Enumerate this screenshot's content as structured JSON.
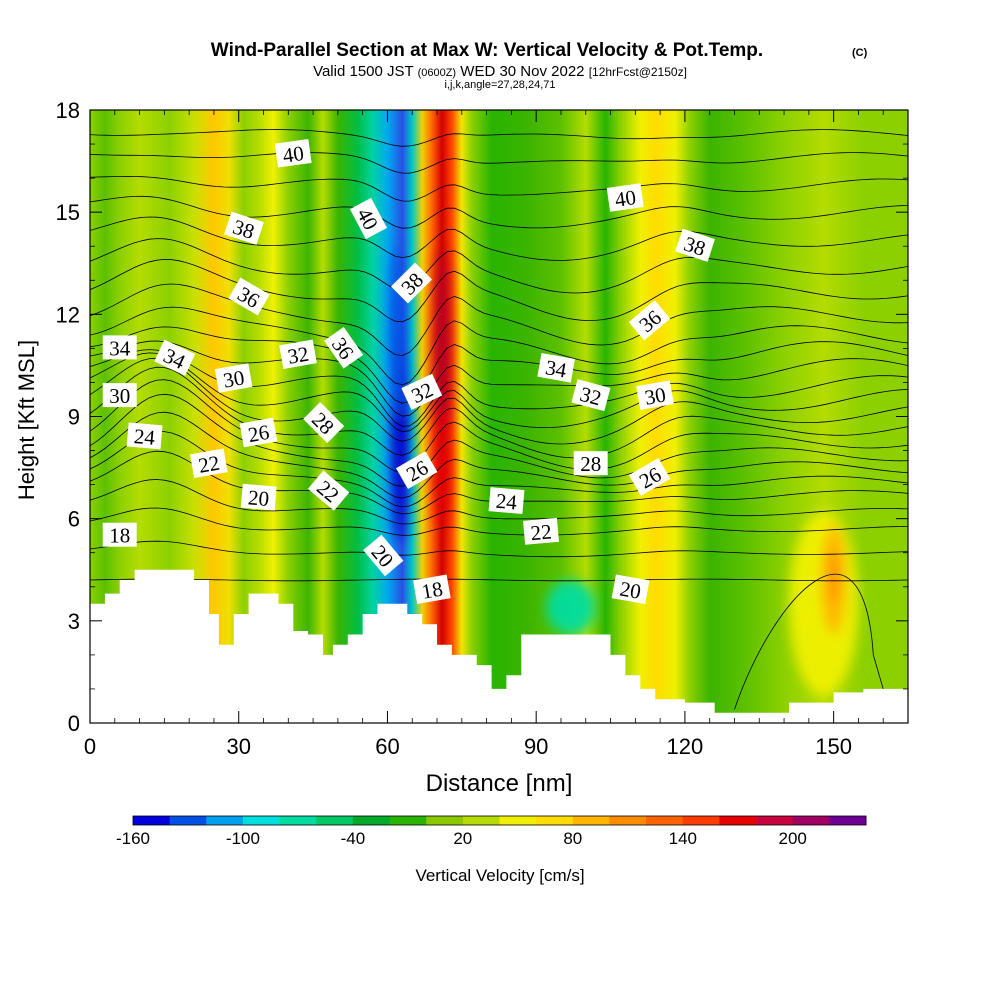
{
  "chart_data": {
    "type": "heatmap",
    "title": "Wind-Parallel Section at Max W: Vertical Velocity & Pot.Temp.",
    "title_mark": "(C)",
    "subtitle_parts": {
      "valid": "Valid 1500 JST",
      "utc": "(0600Z)",
      "date": "WED 30 Nov 2022",
      "fcst": "[12hrFcst@2150z]"
    },
    "subtitle2": "i,j,k,angle=27,28,24,71",
    "xlabel": "Distance [nm]",
    "ylabel": "Height [Kft MSL]",
    "xlim": [
      0,
      165
    ],
    "ylim": [
      0,
      18
    ],
    "x_ticks": [
      "0",
      "30",
      "60",
      "90",
      "120",
      "150"
    ],
    "x_tick_values": [
      0,
      30,
      60,
      90,
      120,
      150
    ],
    "y_ticks": [
      "0",
      "3",
      "6",
      "9",
      "12",
      "15",
      "18"
    ],
    "y_tick_values": [
      0,
      3,
      6,
      9,
      12,
      15,
      18
    ],
    "colorbar": {
      "label": "Vertical Velocity [cm/s]",
      "tick_labels": [
        "-160",
        "-100",
        "-40",
        "20",
        "80",
        "140",
        "200"
      ],
      "colors": [
        "#0000dd",
        "#0050e6",
        "#00a0ee",
        "#00dede",
        "#00dca0",
        "#00c864",
        "#00aa28",
        "#28b400",
        "#8cc800",
        "#b4dc00",
        "#f0f000",
        "#ffdc00",
        "#ffb400",
        "#ff8c00",
        "#ff6400",
        "#ff3c00",
        "#e60000",
        "#c8003c",
        "#a00064",
        "#6e0096"
      ]
    },
    "velocity_bands": [
      {
        "x": 0,
        "color": "#8cd000"
      },
      {
        "x": 3,
        "color": "#5cc000"
      },
      {
        "x": 6,
        "color": "#8cd000"
      },
      {
        "x": 10,
        "color": "#b4dc00"
      },
      {
        "x": 16,
        "color": "#8cd000"
      },
      {
        "x": 21,
        "color": "#c8e000"
      },
      {
        "x": 25,
        "color": "#ffc800"
      },
      {
        "x": 28,
        "color": "#f0e000"
      },
      {
        "x": 31,
        "color": "#8cd000"
      },
      {
        "x": 34,
        "color": "#b4dc00"
      },
      {
        "x": 37,
        "color": "#f0f000"
      },
      {
        "x": 40,
        "color": "#8cd000"
      },
      {
        "x": 44,
        "color": "#3cb400"
      },
      {
        "x": 47,
        "color": "#b4dc00"
      },
      {
        "x": 50,
        "color": "#3cb400"
      },
      {
        "x": 54,
        "color": "#00be46"
      },
      {
        "x": 57,
        "color": "#00d2a0"
      },
      {
        "x": 60,
        "color": "#00aaee"
      },
      {
        "x": 63,
        "color": "#2850e6"
      },
      {
        "x": 65,
        "color": "#00c8c8"
      },
      {
        "x": 67,
        "color": "#f0d200"
      },
      {
        "x": 69,
        "color": "#ff6400"
      },
      {
        "x": 71,
        "color": "#d20000"
      },
      {
        "x": 73,
        "color": "#ff4600"
      },
      {
        "x": 75,
        "color": "#f0e600"
      },
      {
        "x": 77,
        "color": "#8cd000"
      },
      {
        "x": 81,
        "color": "#28b400"
      },
      {
        "x": 88,
        "color": "#3cb400"
      },
      {
        "x": 95,
        "color": "#5cc000"
      },
      {
        "x": 100,
        "color": "#b4dc00"
      },
      {
        "x": 104,
        "color": "#28b400"
      },
      {
        "x": 107,
        "color": "#8cd000"
      },
      {
        "x": 111,
        "color": "#f0f000"
      },
      {
        "x": 114,
        "color": "#ffdc00"
      },
      {
        "x": 118,
        "color": "#f0f000"
      },
      {
        "x": 121,
        "color": "#8cd000"
      },
      {
        "x": 125,
        "color": "#3cb400"
      },
      {
        "x": 132,
        "color": "#5cc000"
      },
      {
        "x": 140,
        "color": "#8cd000"
      },
      {
        "x": 148,
        "color": "#b4dc00"
      },
      {
        "x": 156,
        "color": "#8cd000"
      },
      {
        "x": 165,
        "color": "#8cd000"
      }
    ],
    "velocity_cells": [
      {
        "x": 62.5,
        "y": 8.5,
        "rx": 1.6,
        "ry": 3.2,
        "color": "#0000c8"
      },
      {
        "x": 62,
        "y": 11.5,
        "rx": 1.4,
        "ry": 2.5,
        "color": "#0050e6"
      },
      {
        "x": 71,
        "y": 10.5,
        "rx": 1.6,
        "ry": 3.5,
        "color": "#b40028"
      },
      {
        "x": 71,
        "y": 7.5,
        "rx": 1.4,
        "ry": 1.8,
        "color": "#e60000"
      },
      {
        "x": 97,
        "y": 3.4,
        "rx": 5,
        "ry": 0.8,
        "color": "#00dca0"
      },
      {
        "x": 148,
        "y": 3.5,
        "rx": 7,
        "ry": 2.7,
        "color": "#f0f000"
      },
      {
        "x": 150,
        "y": 4.2,
        "rx": 2.5,
        "ry": 1.6,
        "color": "#ffb400"
      },
      {
        "x": 150,
        "y": 4.3,
        "rx": 1,
        "ry": 0.8,
        "color": "#ff8c00"
      }
    ],
    "terrain": [
      [
        0,
        3.5
      ],
      [
        3,
        3.5
      ],
      [
        3,
        3.8
      ],
      [
        6,
        3.8
      ],
      [
        6,
        4.2
      ],
      [
        9,
        4.2
      ],
      [
        9,
        4.5
      ],
      [
        21,
        4.5
      ],
      [
        21,
        4.2
      ],
      [
        24,
        4.2
      ],
      [
        24,
        3.2
      ],
      [
        26,
        3.2
      ],
      [
        26,
        2.3
      ],
      [
        29,
        2.3
      ],
      [
        29,
        3.2
      ],
      [
        32,
        3.2
      ],
      [
        32,
        3.8
      ],
      [
        38,
        3.8
      ],
      [
        38,
        3.5
      ],
      [
        41,
        3.5
      ],
      [
        41,
        2.7
      ],
      [
        44,
        2.7
      ],
      [
        44,
        2.6
      ],
      [
        47,
        2.6
      ],
      [
        47,
        2.0
      ],
      [
        49,
        2.0
      ],
      [
        49,
        2.3
      ],
      [
        52,
        2.3
      ],
      [
        52,
        2.6
      ],
      [
        55,
        2.6
      ],
      [
        55,
        3.2
      ],
      [
        58,
        3.2
      ],
      [
        58,
        3.5
      ],
      [
        64,
        3.5
      ],
      [
        64,
        3.2
      ],
      [
        67,
        3.2
      ],
      [
        67,
        2.9
      ],
      [
        70,
        2.9
      ],
      [
        70,
        2.3
      ],
      [
        73,
        2.3
      ],
      [
        73,
        2.0
      ],
      [
        78,
        2.0
      ],
      [
        78,
        1.7
      ],
      [
        81,
        1.7
      ],
      [
        81,
        1.0
      ],
      [
        84,
        1.0
      ],
      [
        84,
        1.4
      ],
      [
        87,
        1.4
      ],
      [
        87,
        2.6
      ],
      [
        105,
        2.6
      ],
      [
        105,
        2.0
      ],
      [
        108,
        2.0
      ],
      [
        108,
        1.4
      ],
      [
        111,
        1.4
      ],
      [
        111,
        1.0
      ],
      [
        114,
        1.0
      ],
      [
        114,
        0.7
      ],
      [
        120,
        0.7
      ],
      [
        120,
        0.6
      ],
      [
        126,
        0.6
      ],
      [
        126,
        0.3
      ],
      [
        141,
        0.3
      ],
      [
        141,
        0.6
      ],
      [
        150,
        0.6
      ],
      [
        150,
        0.9
      ],
      [
        156,
        0.9
      ],
      [
        156,
        1.0
      ],
      [
        165,
        1.0
      ]
    ],
    "theta_lines": [
      {
        "base": 4.2,
        "left": 0.0,
        "wave": 0.0,
        "amp": 0.05
      },
      {
        "base": 5.0,
        "left": 0.3,
        "wave": 0.1,
        "amp": 0.1
      },
      {
        "base": 5.7,
        "left": 0.6,
        "wave": 0.2,
        "amp": 0.15
      },
      {
        "base": 6.2,
        "left": 1.0,
        "wave": 0.3,
        "amp": 0.2
      },
      {
        "base": 6.7,
        "left": 1.4,
        "wave": 0.4,
        "amp": 0.25
      },
      {
        "base": 7.1,
        "left": 1.6,
        "wave": 0.5,
        "amp": 0.3
      },
      {
        "base": 7.5,
        "left": 1.7,
        "wave": 0.6,
        "amp": 0.35
      },
      {
        "base": 7.9,
        "left": 1.7,
        "wave": 0.7,
        "amp": 0.4
      },
      {
        "base": 8.3,
        "left": 1.6,
        "wave": 0.8,
        "amp": 0.45
      },
      {
        "base": 8.7,
        "left": 1.5,
        "wave": 0.85,
        "amp": 0.5
      },
      {
        "base": 9.1,
        "left": 1.4,
        "wave": 0.9,
        "amp": 0.55
      },
      {
        "base": 9.5,
        "left": 1.3,
        "wave": 0.95,
        "amp": 0.6
      },
      {
        "base": 9.9,
        "left": 1.2,
        "wave": 1.0,
        "amp": 0.6
      },
      {
        "base": 10.4,
        "left": 1.1,
        "wave": 1.0,
        "amp": 0.6
      },
      {
        "base": 10.9,
        "left": 1.0,
        "wave": 1.0,
        "amp": 0.6
      },
      {
        "base": 11.4,
        "left": 0.9,
        "wave": 1.0,
        "amp": 0.55
      },
      {
        "base": 12.0,
        "left": 0.8,
        "wave": 0.9,
        "amp": 0.5
      },
      {
        "base": 12.7,
        "left": 0.7,
        "wave": 0.8,
        "amp": 0.5
      },
      {
        "base": 13.4,
        "left": 0.6,
        "wave": 0.7,
        "amp": 0.45
      },
      {
        "base": 14.2,
        "left": 0.5,
        "wave": 0.6,
        "amp": 0.4
      },
      {
        "base": 15.0,
        "left": 0.4,
        "wave": 0.5,
        "amp": 0.4
      },
      {
        "base": 15.8,
        "left": 0.3,
        "wave": 0.4,
        "amp": 0.35
      },
      {
        "base": 16.6,
        "left": 0.2,
        "wave": 0.3,
        "amp": 0.3
      },
      {
        "base": 17.3,
        "left": 0.1,
        "wave": 0.2,
        "amp": 0.25
      }
    ],
    "contour_labels": [
      {
        "text": "40",
        "x": 41,
        "y": 16.7,
        "angle": -8
      },
      {
        "text": "40",
        "x": 56,
        "y": 14.8,
        "angle": 62
      },
      {
        "text": "40",
        "x": 108,
        "y": 15.4,
        "angle": -8
      },
      {
        "text": "38",
        "x": 31,
        "y": 14.5,
        "angle": 18
      },
      {
        "text": "38",
        "x": 122,
        "y": 14.0,
        "angle": 18
      },
      {
        "text": "38",
        "x": 65,
        "y": 12.9,
        "angle": -45
      },
      {
        "text": "36",
        "x": 32,
        "y": 12.5,
        "angle": 30
      },
      {
        "text": "36",
        "x": 51,
        "y": 11.0,
        "angle": 55
      },
      {
        "text": "36",
        "x": 113,
        "y": 11.8,
        "angle": -40
      },
      {
        "text": "34",
        "x": 6,
        "y": 11.0,
        "angle": 0
      },
      {
        "text": "34",
        "x": 17,
        "y": 10.7,
        "angle": 25
      },
      {
        "text": "34",
        "x": 94,
        "y": 10.4,
        "angle": 10
      },
      {
        "text": "32",
        "x": 42,
        "y": 10.8,
        "angle": -10
      },
      {
        "text": "32",
        "x": 67,
        "y": 9.7,
        "angle": -25
      },
      {
        "text": "32",
        "x": 101,
        "y": 9.6,
        "angle": 15
      },
      {
        "text": "30",
        "x": 6,
        "y": 9.6,
        "angle": 0
      },
      {
        "text": "30",
        "x": 29,
        "y": 10.1,
        "angle": -10
      },
      {
        "text": "30",
        "x": 114,
        "y": 9.6,
        "angle": -10
      },
      {
        "text": "28",
        "x": 47,
        "y": 8.8,
        "angle": 45
      },
      {
        "text": "28",
        "x": 101,
        "y": 7.6,
        "angle": 0
      },
      {
        "text": "26",
        "x": 34,
        "y": 8.5,
        "angle": -10
      },
      {
        "text": "26",
        "x": 66,
        "y": 7.4,
        "angle": -30
      },
      {
        "text": "26",
        "x": 113,
        "y": 7.2,
        "angle": -30
      },
      {
        "text": "24",
        "x": 11,
        "y": 8.4,
        "angle": 5
      },
      {
        "text": "24",
        "x": 84,
        "y": 6.5,
        "angle": 5
      },
      {
        "text": "22",
        "x": 24,
        "y": 7.6,
        "angle": -10
      },
      {
        "text": "22",
        "x": 48,
        "y": 6.8,
        "angle": 40
      },
      {
        "text": "22",
        "x": 91,
        "y": 5.6,
        "angle": -5
      },
      {
        "text": "20",
        "x": 34,
        "y": 6.6,
        "angle": 5
      },
      {
        "text": "20",
        "x": 59,
        "y": 4.9,
        "angle": 50
      },
      {
        "text": "20",
        "x": 109,
        "y": 3.9,
        "angle": 10
      },
      {
        "text": "18",
        "x": 6,
        "y": 5.5,
        "angle": 0
      },
      {
        "text": "18",
        "x": 69,
        "y": 3.9,
        "angle": -10
      }
    ]
  }
}
